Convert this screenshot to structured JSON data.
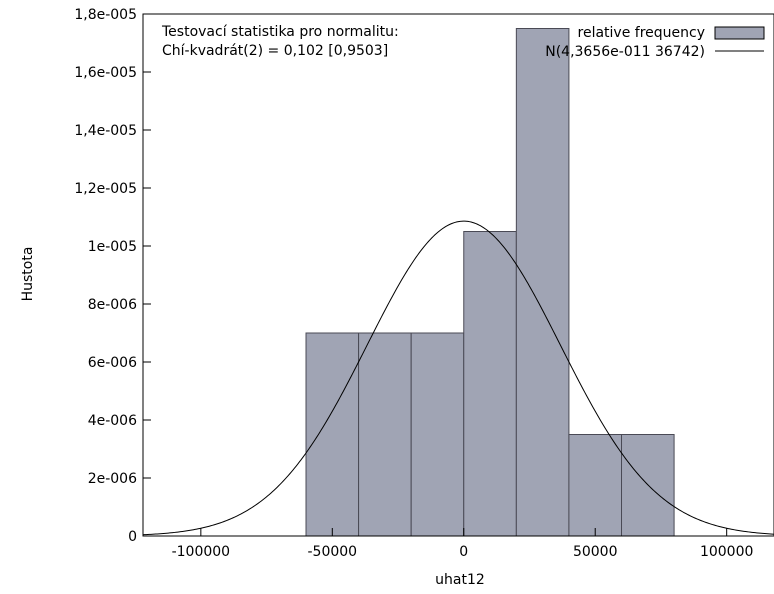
{
  "chart_data": {
    "type": "bar",
    "title": "",
    "xlabel": "uhat12",
    "ylabel": "Hustota",
    "xlim": [
      -122000,
      118000
    ],
    "ylim": [
      0,
      1.8e-05
    ],
    "x_ticks": [
      -100000,
      -50000,
      0,
      50000,
      100000
    ],
    "x_tick_labels": [
      "-100000",
      "-50000",
      "0",
      "50000",
      "100000"
    ],
    "y_ticks": [
      0,
      2e-06,
      4e-06,
      6e-06,
      8e-06,
      1e-05,
      1.2e-05,
      1.4e-05,
      1.6e-05,
      1.8e-05
    ],
    "y_tick_labels": [
      "0",
      "2e-006",
      "4e-006",
      "6e-006",
      "8e-006",
      "1e-005",
      "1,2e-005",
      "1,4e-005",
      "1,6e-005",
      "1,8e-005"
    ],
    "bins": [
      {
        "x0": -60000,
        "x1": -40000,
        "value": 7e-06
      },
      {
        "x0": -40000,
        "x1": -20000,
        "value": 7e-06
      },
      {
        "x0": -20000,
        "x1": 0,
        "value": 7e-06
      },
      {
        "x0": 0,
        "x1": 20000,
        "value": 1.05e-05
      },
      {
        "x0": 20000,
        "x1": 40000,
        "value": 1.75e-05
      },
      {
        "x0": 40000,
        "x1": 60000,
        "value": 3.5e-06
      },
      {
        "x0": 60000,
        "x1": 80000,
        "value": 3.5e-06
      }
    ],
    "normal_curve": {
      "mean": 4.3656e-11,
      "sd": 36742
    },
    "series": [
      {
        "name": "relative frequency",
        "color": "#a0a4b4"
      },
      {
        "name": "N(4,3656e-011 36742)",
        "color": "#000000"
      }
    ],
    "annotation": {
      "line1": "Testovací statistika pro normalitu:",
      "line2": "Chí-kvadrát(2) = 0,102 [0,9503]"
    },
    "legend_position": "top-right",
    "grid": false
  }
}
